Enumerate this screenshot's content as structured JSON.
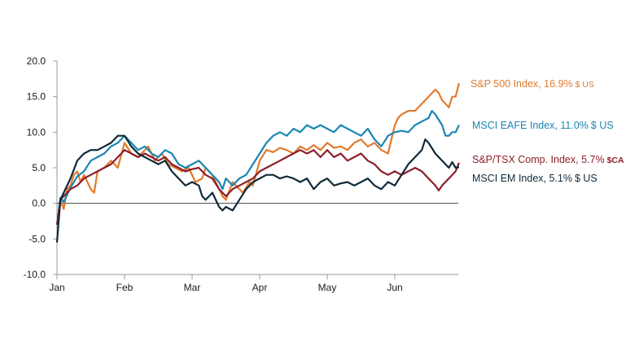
{
  "chart_data": {
    "type": "line",
    "title": "",
    "xlabel": "",
    "ylabel": "",
    "ylim": [
      -10,
      20
    ],
    "yticks": [
      "20.0",
      "15.0",
      "10.0",
      "5.0",
      "0.0",
      "-5.0",
      "-10.0"
    ],
    "xticks": [
      "Jan",
      "Feb",
      "Mar",
      "Apr",
      "May",
      "Jun"
    ],
    "x_month_positions": [
      0,
      1,
      2,
      3,
      4,
      5
    ],
    "grid": false,
    "legend": "direct labels at right end of lines",
    "series": [
      {
        "name": "S&P 500 Index, 16.9%",
        "currency": "$ US",
        "color": "#e07b2e",
        "points": [
          [
            0,
            -3
          ],
          [
            0.05,
            0.5
          ],
          [
            0.1,
            -0.8
          ],
          [
            0.15,
            2
          ],
          [
            0.2,
            2.5
          ],
          [
            0.25,
            4
          ],
          [
            0.3,
            4.5
          ],
          [
            0.35,
            3
          ],
          [
            0.4,
            4
          ],
          [
            0.5,
            2
          ],
          [
            0.55,
            1.5
          ],
          [
            0.6,
            4.5
          ],
          [
            0.7,
            5
          ],
          [
            0.8,
            6
          ],
          [
            0.9,
            5
          ],
          [
            1.0,
            8.5
          ],
          [
            1.1,
            7
          ],
          [
            1.2,
            6.5
          ],
          [
            1.25,
            7
          ],
          [
            1.35,
            8
          ],
          [
            1.45,
            6
          ],
          [
            1.55,
            7
          ],
          [
            1.65,
            5.5
          ],
          [
            1.75,
            5
          ],
          [
            1.85,
            4.5
          ],
          [
            1.95,
            5
          ],
          [
            2.05,
            3
          ],
          [
            2.15,
            3.5
          ],
          [
            2.2,
            5
          ],
          [
            2.3,
            4
          ],
          [
            2.4,
            2
          ],
          [
            2.45,
            1
          ],
          [
            2.5,
            0.5
          ],
          [
            2.6,
            3
          ],
          [
            2.7,
            2
          ],
          [
            2.75,
            1.5
          ],
          [
            2.85,
            3
          ],
          [
            2.9,
            2.5
          ],
          [
            3.0,
            6
          ],
          [
            3.1,
            7.5
          ],
          [
            3.2,
            7.2
          ],
          [
            3.3,
            7.8
          ],
          [
            3.4,
            7.5
          ],
          [
            3.5,
            7
          ],
          [
            3.6,
            8
          ],
          [
            3.7,
            7.5
          ],
          [
            3.8,
            8.2
          ],
          [
            3.9,
            7.5
          ],
          [
            4.0,
            8.5
          ],
          [
            4.1,
            7.8
          ],
          [
            4.2,
            8
          ],
          [
            4.3,
            7.5
          ],
          [
            4.4,
            8.5
          ],
          [
            4.5,
            9
          ],
          [
            4.6,
            8
          ],
          [
            4.7,
            8.5
          ],
          [
            4.8,
            7.5
          ],
          [
            4.9,
            7
          ],
          [
            5.0,
            11
          ],
          [
            5.05,
            12
          ],
          [
            5.1,
            12.5
          ],
          [
            5.2,
            13
          ],
          [
            5.3,
            13
          ],
          [
            5.4,
            14
          ],
          [
            5.5,
            15
          ],
          [
            5.6,
            16
          ],
          [
            5.65,
            15.5
          ],
          [
            5.7,
            14.5
          ],
          [
            5.8,
            13.5
          ],
          [
            5.85,
            15
          ],
          [
            5.9,
            15
          ],
          [
            5.95,
            16.9
          ]
        ]
      },
      {
        "name": "MSCI EAFE Index, 11.0%",
        "currency": "$ US",
        "color": "#1a85b3",
        "points": [
          [
            0,
            -3
          ],
          [
            0.05,
            0.8
          ],
          [
            0.1,
            0.2
          ],
          [
            0.2,
            2.2
          ],
          [
            0.3,
            3.8
          ],
          [
            0.4,
            4.5
          ],
          [
            0.5,
            6
          ],
          [
            0.6,
            6.5
          ],
          [
            0.7,
            7
          ],
          [
            0.8,
            8
          ],
          [
            0.9,
            8.5
          ],
          [
            1.0,
            9.5
          ],
          [
            1.1,
            8.5
          ],
          [
            1.2,
            7.5
          ],
          [
            1.3,
            8
          ],
          [
            1.4,
            7
          ],
          [
            1.5,
            6.5
          ],
          [
            1.6,
            7.5
          ],
          [
            1.7,
            7
          ],
          [
            1.8,
            5.5
          ],
          [
            1.9,
            5
          ],
          [
            2.0,
            5.5
          ],
          [
            2.1,
            6
          ],
          [
            2.2,
            5
          ],
          [
            2.3,
            4
          ],
          [
            2.4,
            3
          ],
          [
            2.45,
            2
          ],
          [
            2.5,
            3.5
          ],
          [
            2.6,
            2.5
          ],
          [
            2.7,
            3.5
          ],
          [
            2.8,
            4
          ],
          [
            2.9,
            5.5
          ],
          [
            3.0,
            7
          ],
          [
            3.1,
            8.5
          ],
          [
            3.2,
            9.5
          ],
          [
            3.3,
            10
          ],
          [
            3.4,
            9.5
          ],
          [
            3.5,
            10.5
          ],
          [
            3.6,
            10
          ],
          [
            3.7,
            11
          ],
          [
            3.8,
            10.5
          ],
          [
            3.9,
            11
          ],
          [
            4.0,
            10.5
          ],
          [
            4.1,
            10
          ],
          [
            4.2,
            11
          ],
          [
            4.3,
            10.5
          ],
          [
            4.4,
            10
          ],
          [
            4.5,
            9.5
          ],
          [
            4.6,
            10.5
          ],
          [
            4.7,
            9
          ],
          [
            4.8,
            8
          ],
          [
            4.9,
            9.5
          ],
          [
            5.0,
            10
          ],
          [
            5.1,
            10.2
          ],
          [
            5.2,
            10
          ],
          [
            5.3,
            11
          ],
          [
            5.4,
            11.5
          ],
          [
            5.5,
            12
          ],
          [
            5.55,
            13
          ],
          [
            5.6,
            12.5
          ],
          [
            5.7,
            11
          ],
          [
            5.75,
            9.5
          ],
          [
            5.8,
            9.5
          ],
          [
            5.85,
            10
          ],
          [
            5.9,
            10
          ],
          [
            5.95,
            11.0
          ]
        ]
      },
      {
        "name": "S&P/TSX Comp. Index, 5.7%",
        "currency": "$CA",
        "color": "#8b1f2b",
        "points": [
          [
            0,
            -3
          ],
          [
            0.05,
            0.5
          ],
          [
            0.1,
            1
          ],
          [
            0.2,
            2
          ],
          [
            0.3,
            2.5
          ],
          [
            0.4,
            3.5
          ],
          [
            0.5,
            4
          ],
          [
            0.6,
            4.5
          ],
          [
            0.7,
            5
          ],
          [
            0.8,
            5.5
          ],
          [
            0.9,
            6.5
          ],
          [
            1.0,
            7.5
          ],
          [
            1.1,
            7
          ],
          [
            1.2,
            6.5
          ],
          [
            1.3,
            7
          ],
          [
            1.4,
            6.5
          ],
          [
            1.5,
            6
          ],
          [
            1.6,
            6.5
          ],
          [
            1.7,
            5.5
          ],
          [
            1.8,
            5
          ],
          [
            1.9,
            4.5
          ],
          [
            2.0,
            4.8
          ],
          [
            2.1,
            5
          ],
          [
            2.2,
            4
          ],
          [
            2.3,
            3.5
          ],
          [
            2.4,
            2
          ],
          [
            2.5,
            1
          ],
          [
            2.6,
            2
          ],
          [
            2.7,
            2.5
          ],
          [
            2.8,
            3
          ],
          [
            2.9,
            3.5
          ],
          [
            3.0,
            4.5
          ],
          [
            3.1,
            5
          ],
          [
            3.2,
            5.5
          ],
          [
            3.3,
            6
          ],
          [
            3.4,
            6.5
          ],
          [
            3.5,
            7
          ],
          [
            3.6,
            7.5
          ],
          [
            3.7,
            7
          ],
          [
            3.8,
            7.5
          ],
          [
            3.9,
            6.5
          ],
          [
            4.0,
            7.5
          ],
          [
            4.1,
            6.5
          ],
          [
            4.2,
            7
          ],
          [
            4.3,
            6
          ],
          [
            4.4,
            6.5
          ],
          [
            4.5,
            7
          ],
          [
            4.6,
            6
          ],
          [
            4.7,
            5.5
          ],
          [
            4.8,
            4.5
          ],
          [
            4.9,
            4
          ],
          [
            5.0,
            4.5
          ],
          [
            5.1,
            4
          ],
          [
            5.2,
            4.5
          ],
          [
            5.3,
            5
          ],
          [
            5.4,
            4.5
          ],
          [
            5.5,
            3.5
          ],
          [
            5.6,
            2.5
          ],
          [
            5.65,
            1.8
          ],
          [
            5.7,
            2.5
          ],
          [
            5.8,
            3.5
          ],
          [
            5.9,
            4.5
          ],
          [
            5.95,
            5.7
          ]
        ]
      },
      {
        "name": "MSCI EM Index, 5.1%",
        "currency": "$ US",
        "color": "#0f2a3a",
        "points": [
          [
            0,
            -5.5
          ],
          [
            0.05,
            0.5
          ],
          [
            0.1,
            1.5
          ],
          [
            0.2,
            3.5
          ],
          [
            0.3,
            6
          ],
          [
            0.4,
            7
          ],
          [
            0.5,
            7.5
          ],
          [
            0.6,
            7.5
          ],
          [
            0.7,
            8
          ],
          [
            0.8,
            8.5
          ],
          [
            0.9,
            9.5
          ],
          [
            1.0,
            9.5
          ],
          [
            1.1,
            8
          ],
          [
            1.2,
            7
          ],
          [
            1.3,
            6.5
          ],
          [
            1.4,
            6
          ],
          [
            1.5,
            5.5
          ],
          [
            1.6,
            6
          ],
          [
            1.7,
            4.5
          ],
          [
            1.8,
            3.5
          ],
          [
            1.9,
            2.5
          ],
          [
            2.0,
            3
          ],
          [
            2.1,
            2.5
          ],
          [
            2.15,
            1
          ],
          [
            2.2,
            0.5
          ],
          [
            2.3,
            1.5
          ],
          [
            2.4,
            -0.5
          ],
          [
            2.45,
            -1
          ],
          [
            2.5,
            -0.5
          ],
          [
            2.6,
            -1
          ],
          [
            2.7,
            0.5
          ],
          [
            2.8,
            2
          ],
          [
            2.9,
            3
          ],
          [
            3.0,
            3.5
          ],
          [
            3.1,
            4
          ],
          [
            3.2,
            4
          ],
          [
            3.3,
            3.5
          ],
          [
            3.4,
            3.8
          ],
          [
            3.5,
            3.5
          ],
          [
            3.6,
            3
          ],
          [
            3.7,
            3.5
          ],
          [
            3.8,
            2
          ],
          [
            3.9,
            3
          ],
          [
            4.0,
            3.5
          ],
          [
            4.1,
            2.5
          ],
          [
            4.2,
            2.8
          ],
          [
            4.3,
            3
          ],
          [
            4.4,
            2.5
          ],
          [
            4.5,
            3
          ],
          [
            4.6,
            3.5
          ],
          [
            4.7,
            2.5
          ],
          [
            4.8,
            2
          ],
          [
            4.9,
            3
          ],
          [
            5.0,
            2.5
          ],
          [
            5.1,
            4
          ],
          [
            5.2,
            5.5
          ],
          [
            5.3,
            6.5
          ],
          [
            5.4,
            7.5
          ],
          [
            5.45,
            9
          ],
          [
            5.5,
            8.5
          ],
          [
            5.6,
            7
          ],
          [
            5.7,
            6
          ],
          [
            5.8,
            5
          ],
          [
            5.85,
            5.8
          ],
          [
            5.9,
            5
          ],
          [
            5.95,
            5.1
          ]
        ]
      }
    ]
  }
}
